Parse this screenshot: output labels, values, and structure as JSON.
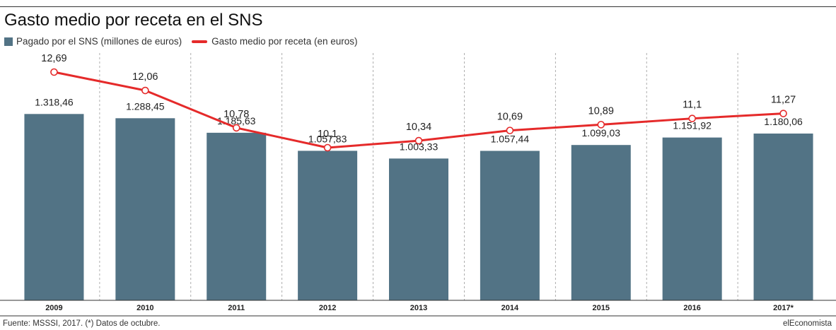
{
  "header": {
    "title": "Gasto medio por receta en el SNS"
  },
  "legend": {
    "bars_label": "Pagado por el SNS (millones de euros)",
    "line_label": "Gasto medio por receta (en euros)"
  },
  "footer": {
    "source": "Fuente: MSSSI, 2017. (*) Datos de octubre.",
    "brand": "elEconomista"
  },
  "colors": {
    "bar": "#527385",
    "line": "#e52a2a",
    "grid": "#9a9a9a"
  },
  "chart_data": {
    "type": "bar",
    "categories": [
      "2009",
      "2010",
      "2011",
      "2012",
      "2013",
      "2014",
      "2015",
      "2016",
      "2017*"
    ],
    "series": [
      {
        "name": "Pagado por el SNS (millones de euros)",
        "type": "bar",
        "values": [
          1318.46,
          1288.45,
          1185.63,
          1057.83,
          1003.33,
          1057.44,
          1099.03,
          1151.92,
          1180.06
        ],
        "labels": [
          "1.318,46",
          "1.288,45",
          "1.185,63",
          "1.057,83",
          "1.003,33",
          "1.057,44",
          "1.099,03",
          "1.151,92",
          "1.180,06"
        ]
      },
      {
        "name": "Gasto medio por receta (en euros)",
        "type": "line",
        "values": [
          12.69,
          12.06,
          10.78,
          10.1,
          10.34,
          10.69,
          10.89,
          11.1,
          11.27
        ],
        "labels": [
          "12,69",
          "12,06",
          "10,78",
          "10,1",
          "10,34",
          "10,69",
          "10,89",
          "11,1",
          "11,27"
        ]
      }
    ],
    "legend_position": "top-left",
    "grid": "vertical dashed separators"
  }
}
